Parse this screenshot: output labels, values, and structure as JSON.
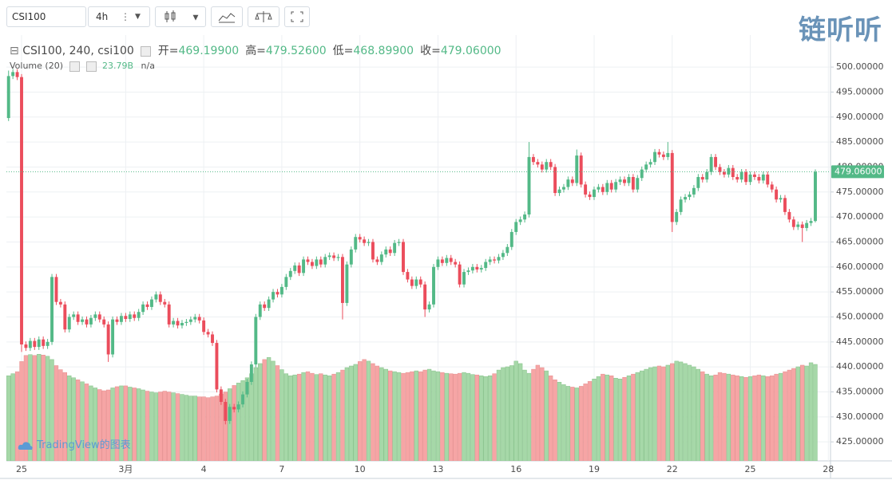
{
  "toolbar": {
    "symbol": "CSI100",
    "interval": "4h"
  },
  "logo": "链听听",
  "watermark": "TradingView的图表",
  "chart_data": {
    "type": "candlestick",
    "title": "CSI100, 240, csi100",
    "ohlc_legend": [
      {
        "label": "开=",
        "value": "469.19900"
      },
      {
        "label": "高=",
        "value": "479.52600"
      },
      {
        "label": "低=",
        "value": "468.89900"
      },
      {
        "label": "收=",
        "value": "479.06000"
      }
    ],
    "volume_legend": {
      "name": "Volume (20)",
      "value": "23.79B",
      "extra": "n/a"
    },
    "last_price_label": "479.06000",
    "categories": [
      null,
      null,
      null,
      "25",
      null,
      null,
      null,
      null,
      null,
      null,
      null,
      null,
      null,
      null,
      null,
      null,
      null,
      null,
      null,
      null,
      null,
      null,
      null,
      null,
      null,
      null,
      null,
      "3月",
      null,
      null,
      null,
      null,
      null,
      null,
      null,
      null,
      null,
      null,
      null,
      null,
      null,
      null,
      null,
      null,
      null,
      "4",
      null,
      null,
      null,
      null,
      null,
      null,
      null,
      null,
      null,
      null,
      null,
      null,
      null,
      null,
      null,
      null,
      null,
      "7",
      null,
      null,
      null,
      null,
      null,
      null,
      null,
      null,
      null,
      null,
      null,
      null,
      null,
      null,
      null,
      null,
      null,
      "10",
      null,
      null,
      null,
      null,
      null,
      null,
      null,
      null,
      null,
      null,
      null,
      null,
      null,
      null,
      null,
      null,
      null,
      "13",
      null,
      null,
      null,
      null,
      null,
      null,
      null,
      null,
      null,
      null,
      null,
      null,
      null,
      null,
      null,
      null,
      null,
      "16",
      null,
      null,
      null,
      null,
      null,
      null,
      null,
      null,
      null,
      null,
      null,
      null,
      null,
      null,
      null,
      null,
      null,
      "19",
      null,
      null,
      null,
      null,
      null,
      null,
      null,
      null,
      null,
      null,
      null,
      null,
      null,
      null,
      null,
      null,
      null,
      "22",
      null,
      null,
      null,
      null,
      null,
      null,
      null,
      null,
      null,
      null,
      null,
      null,
      null,
      null,
      null,
      null,
      null,
      "25",
      null,
      null,
      null,
      null,
      null,
      null,
      null,
      null,
      null,
      null,
      null,
      null,
      null,
      null,
      null,
      null,
      null,
      "28"
    ],
    "open": [
      489.8,
      498.2,
      499.0,
      498.0,
      444.5,
      443.8,
      445.2,
      444.0,
      445.5,
      444.2,
      445.0,
      458.0,
      453.0,
      452.5,
      447.5,
      450.0,
      450.5,
      449.0,
      449.5,
      448.5,
      449.8,
      450.5,
      449.5,
      448.5,
      442.5,
      449.5,
      449.0,
      450.2,
      449.6,
      450.5,
      449.8,
      451.0,
      452.5,
      452.0,
      453.5,
      454.5,
      453.0,
      452.5,
      448.5,
      449.2,
      448.3,
      448.8,
      449.0,
      449.5,
      450.0,
      449.3,
      447.0,
      446.5,
      444.8,
      435.5,
      433.0,
      429.2,
      432.0,
      431.5,
      432.5,
      434.5,
      437.0,
      440.5,
      450.0,
      452.5,
      451.8,
      453.5,
      455.0,
      454.5,
      456.0,
      458.0,
      459.2,
      460.3,
      458.8,
      461.5,
      461.0,
      460.2,
      461.5,
      460.5,
      462.0,
      462.3,
      461.8,
      462.0,
      452.8,
      460.5,
      463.5,
      466.0,
      465.5,
      464.8,
      465.0,
      461.5,
      461.0,
      462.5,
      463.5,
      462.8,
      464.8,
      465.0,
      459.0,
      457.5,
      456.2,
      457.5,
      456.5,
      451.5,
      452.5,
      460.0,
      461.5,
      460.8,
      461.8,
      461.0,
      460.5,
      456.5,
      459.0,
      459.3,
      460.0,
      459.5,
      459.8,
      461.0,
      461.5,
      461.3,
      462.0,
      462.8,
      464.0,
      467.0,
      469.0,
      469.5,
      470.5,
      482.0,
      481.0,
      480.5,
      479.5,
      481.0,
      480.0,
      474.8,
      475.5,
      476.0,
      477.5,
      476.8,
      482.3,
      476.5,
      474.5,
      474.0,
      475.5,
      476.0,
      475.0,
      476.8,
      475.5,
      477.0,
      477.5,
      476.8,
      478.0,
      475.5,
      477.8,
      479.5,
      480.5,
      481.0,
      483.0,
      482.5,
      482.0,
      482.8,
      469.0,
      471.0,
      473.5,
      474.0,
      474.5,
      475.8,
      478.0,
      477.5,
      479.0,
      482.0,
      480.0,
      479.0,
      478.5,
      479.8,
      478.0,
      477.5,
      479.0,
      477.0,
      478.5,
      478.0,
      477.3,
      478.5,
      476.5,
      475.5,
      473.5,
      473.8,
      471.0,
      469.5,
      468.0,
      468.5,
      467.8,
      468.8,
      469.199,
      null,
      null,
      null
    ],
    "high": [
      499.3,
      499.6,
      499.6,
      498.6,
      445.1,
      445.8,
      445.8,
      446.1,
      446.1,
      445.6,
      458.6,
      458.6,
      453.6,
      453.1,
      450.6,
      451.1,
      451.1,
      450.1,
      450.1,
      450.4,
      451.1,
      451.1,
      450.1,
      449.1,
      450.1,
      450.1,
      450.8,
      450.8,
      451.1,
      451.1,
      451.6,
      453.1,
      453.1,
      454.1,
      455.1,
      455.1,
      453.6,
      453.1,
      449.8,
      449.8,
      449.4,
      449.6,
      450.1,
      450.6,
      450.6,
      449.9,
      447.6,
      447.1,
      445.4,
      436.1,
      433.6,
      432.6,
      432.6,
      433.1,
      435.1,
      437.6,
      441.1,
      450.6,
      453.1,
      453.1,
      454.1,
      455.6,
      455.6,
      456.6,
      458.6,
      459.8,
      460.9,
      460.9,
      462.1,
      462.1,
      461.6,
      462.1,
      462.1,
      462.6,
      462.9,
      462.9,
      462.6,
      462.6,
      461.1,
      464.1,
      466.6,
      466.6,
      466.1,
      465.6,
      465.6,
      462.1,
      463.1,
      464.1,
      464.1,
      465.4,
      465.6,
      465.6,
      459.6,
      458.1,
      458.1,
      458.1,
      457.1,
      453.1,
      460.6,
      462.1,
      462.1,
      462.4,
      462.4,
      461.6,
      461.1,
      459.6,
      459.9,
      460.6,
      460.6,
      460.4,
      461.6,
      462.1,
      462.1,
      462.6,
      463.4,
      464.6,
      467.6,
      469.6,
      470.1,
      471.1,
      485.0,
      482.6,
      481.6,
      481.1,
      481.6,
      481.6,
      480.6,
      476.1,
      476.6,
      478.1,
      478.1,
      483.5,
      482.9,
      477.1,
      475.1,
      476.1,
      476.6,
      476.6,
      477.4,
      477.4,
      477.6,
      478.1,
      478.1,
      478.6,
      478.6,
      478.4,
      480.1,
      481.1,
      481.6,
      483.6,
      483.6,
      483.1,
      485.0,
      483.4,
      471.6,
      474.1,
      474.6,
      475.1,
      476.4,
      478.6,
      478.6,
      479.6,
      482.6,
      482.6,
      480.6,
      479.6,
      480.4,
      480.4,
      478.6,
      479.6,
      479.6,
      479.1,
      479.1,
      478.6,
      479.1,
      479.1,
      477.1,
      476.1,
      474.4,
      474.4,
      471.6,
      470.1,
      469.1,
      469.1,
      469.4,
      469.8,
      479.526,
      null,
      null,
      null
    ],
    "low": [
      489.2,
      497.6,
      497.4,
      443.0,
      443.2,
      443.2,
      443.4,
      443.4,
      443.6,
      443.6,
      444.4,
      452.4,
      451.9,
      446.9,
      446.9,
      449.4,
      448.4,
      448.4,
      447.9,
      447.9,
      449.2,
      448.9,
      447.9,
      441.0,
      441.9,
      448.4,
      448.4,
      449.0,
      449.0,
      449.2,
      449.2,
      450.4,
      451.4,
      451.4,
      452.9,
      452.4,
      451.9,
      447.9,
      447.9,
      447.7,
      447.7,
      448.2,
      448.4,
      448.9,
      448.7,
      446.4,
      445.9,
      444.2,
      434.9,
      432.4,
      428.5,
      428.6,
      430.9,
      430.9,
      431.9,
      433.9,
      436.4,
      439.9,
      449.4,
      451.2,
      451.2,
      452.9,
      453.9,
      453.9,
      455.4,
      457.4,
      458.6,
      458.2,
      458.2,
      460.4,
      459.6,
      459.6,
      459.9,
      459.9,
      461.4,
      461.2,
      461.2,
      449.5,
      452.2,
      459.9,
      462.9,
      464.9,
      464.2,
      464.2,
      460.9,
      460.4,
      460.4,
      461.9,
      462.2,
      462.2,
      464.2,
      458.4,
      456.9,
      455.6,
      455.6,
      455.9,
      450.0,
      450.9,
      451.9,
      459.4,
      460.2,
      460.2,
      460.4,
      459.9,
      455.9,
      455.9,
      458.4,
      458.7,
      458.9,
      458.9,
      459.2,
      460.4,
      460.7,
      460.7,
      461.4,
      462.2,
      463.4,
      466.4,
      468.4,
      468.9,
      469.9,
      480.4,
      479.9,
      478.9,
      478.9,
      479.4,
      474.2,
      474.2,
      474.9,
      475.4,
      476.2,
      476.2,
      475.9,
      473.9,
      473.4,
      473.4,
      474.9,
      474.4,
      474.4,
      474.9,
      474.9,
      476.4,
      476.2,
      476.2,
      474.9,
      474.9,
      477.2,
      478.9,
      479.9,
      480.4,
      481.9,
      481.4,
      481.4,
      467.0,
      468.4,
      470.4,
      472.9,
      473.4,
      473.9,
      475.2,
      476.9,
      476.9,
      478.4,
      479.4,
      478.4,
      477.9,
      477.9,
      477.4,
      476.9,
      476.9,
      476.4,
      476.4,
      477.4,
      476.7,
      476.7,
      475.9,
      474.9,
      472.9,
      472.9,
      470.4,
      468.9,
      467.4,
      467.4,
      465.0,
      467.2,
      468.2,
      468.899,
      null,
      null,
      null
    ],
    "close": [
      498.2,
      499.0,
      498.0,
      444.5,
      443.8,
      445.2,
      444.0,
      445.5,
      444.2,
      445.0,
      458.0,
      453.0,
      452.5,
      447.5,
      450.0,
      450.5,
      449.0,
      449.5,
      448.5,
      449.8,
      450.5,
      449.5,
      448.5,
      442.5,
      449.5,
      449.0,
      450.2,
      449.6,
      450.5,
      449.8,
      451.0,
      452.5,
      452.0,
      453.5,
      454.5,
      453.0,
      452.5,
      448.5,
      449.2,
      448.3,
      448.8,
      449.0,
      449.5,
      450.0,
      449.3,
      447.0,
      446.5,
      444.8,
      435.5,
      433.0,
      429.2,
      432.0,
      431.5,
      432.5,
      434.5,
      437.0,
      440.5,
      450.0,
      452.5,
      451.8,
      453.5,
      455.0,
      454.5,
      456.0,
      458.0,
      459.2,
      460.3,
      458.8,
      461.5,
      461.0,
      460.2,
      461.5,
      460.5,
      462.0,
      462.3,
      461.8,
      462.0,
      452.8,
      460.5,
      463.5,
      466.0,
      465.5,
      464.8,
      465.0,
      461.5,
      461.0,
      462.5,
      463.5,
      462.8,
      464.8,
      465.0,
      459.0,
      457.5,
      456.2,
      457.5,
      456.5,
      451.5,
      452.5,
      460.0,
      461.5,
      460.8,
      461.8,
      461.0,
      460.5,
      456.5,
      459.0,
      459.3,
      460.0,
      459.5,
      459.8,
      461.0,
      461.5,
      461.3,
      462.0,
      462.8,
      464.0,
      467.0,
      469.0,
      469.5,
      470.5,
      482.0,
      481.0,
      480.5,
      479.5,
      481.0,
      480.0,
      474.8,
      475.5,
      476.0,
      477.5,
      476.8,
      482.3,
      476.5,
      474.5,
      474.0,
      475.5,
      476.0,
      475.0,
      476.8,
      475.5,
      477.0,
      477.5,
      476.8,
      478.0,
      475.5,
      477.8,
      479.5,
      480.5,
      481.0,
      483.0,
      482.5,
      482.0,
      482.8,
      469.0,
      471.0,
      473.5,
      474.0,
      474.5,
      475.8,
      478.0,
      477.5,
      479.0,
      482.0,
      480.0,
      479.0,
      478.5,
      479.8,
      478.0,
      477.5,
      479.0,
      477.0,
      478.5,
      478.0,
      477.3,
      478.5,
      476.5,
      475.5,
      473.5,
      473.8,
      471.0,
      469.5,
      468.0,
      468.5,
      467.8,
      468.8,
      469.2,
      479.06,
      null,
      null,
      null
    ],
    "volume": [
      21.0,
      21.5,
      22.0,
      24.5,
      26.0,
      26.2,
      26.0,
      26.3,
      26.1,
      25.8,
      25.0,
      23.5,
      22.5,
      21.8,
      21.0,
      20.5,
      20.0,
      19.5,
      19.0,
      18.5,
      18.0,
      17.6,
      17.3,
      17.5,
      18.0,
      18.3,
      18.5,
      18.5,
      18.2,
      18.0,
      17.8,
      17.5,
      17.2,
      17.0,
      16.8,
      17.0,
      17.2,
      17.0,
      16.8,
      16.6,
      16.4,
      16.2,
      16.0,
      16.0,
      15.8,
      15.8,
      15.6,
      15.8,
      16.0,
      16.5,
      17.0,
      17.8,
      18.6,
      19.2,
      19.8,
      20.5,
      21.5,
      23.0,
      24.0,
      25.0,
      25.5,
      24.6,
      23.5,
      22.5,
      21.5,
      21.0,
      21.2,
      21.4,
      21.8,
      22.0,
      21.6,
      21.3,
      21.5,
      21.2,
      21.0,
      21.4,
      21.8,
      22.4,
      23.0,
      23.4,
      23.8,
      24.5,
      25.0,
      24.6,
      24.0,
      23.4,
      23.0,
      22.6,
      22.2,
      22.0,
      21.8,
      21.6,
      21.8,
      22.0,
      22.2,
      22.0,
      22.4,
      22.6,
      22.2,
      22.0,
      21.8,
      21.6,
      21.5,
      21.4,
      21.6,
      21.8,
      21.6,
      21.3,
      21.2,
      21.0,
      20.8,
      21.0,
      21.5,
      22.4,
      23.0,
      23.2,
      23.5,
      24.6,
      24.0,
      22.4,
      21.6,
      22.6,
      23.6,
      23.0,
      22.2,
      21.0,
      20.0,
      19.4,
      18.8,
      18.4,
      18.2,
      18.0,
      18.4,
      19.0,
      19.6,
      20.2,
      20.8,
      21.4,
      21.2,
      21.0,
      20.4,
      20.2,
      20.6,
      21.0,
      21.4,
      21.8,
      22.2,
      22.6,
      23.0,
      23.2,
      23.4,
      23.2,
      23.6,
      24.0,
      24.6,
      24.4,
      24.0,
      23.6,
      23.2,
      22.6,
      22.0,
      21.4,
      21.0,
      21.2,
      21.8,
      21.6,
      21.4,
      21.2,
      21.0,
      20.8,
      20.6,
      20.8,
      21.0,
      21.2,
      21.0,
      20.8,
      21.0,
      21.4,
      21.6,
      22.0,
      22.4,
      22.8,
      23.2,
      23.6,
      23.4,
      24.2,
      23.79,
      null,
      null,
      null
    ],
    "ylim": [
      421.2,
      506.4
    ],
    "yticks": [
      {
        "value": 425,
        "label": "425.00000"
      },
      {
        "value": 430,
        "label": "430.00000"
      },
      {
        "value": 435,
        "label": "435.00000"
      },
      {
        "value": 440,
        "label": "440.00000"
      },
      {
        "value": 445,
        "label": "445.00000"
      },
      {
        "value": 450,
        "label": "450.00000"
      },
      {
        "value": 455,
        "label": "455.00000"
      },
      {
        "value": 460,
        "label": "460.00000"
      },
      {
        "value": 465,
        "label": "465.00000"
      },
      {
        "value": 470,
        "label": "470.00000"
      },
      {
        "value": 475,
        "label": "475.00000"
      },
      {
        "value": 480,
        "label": "480.00000"
      },
      {
        "value": 485,
        "label": "485.00000"
      },
      {
        "value": 490,
        "label": "490.00000"
      },
      {
        "value": 495,
        "label": "495.00000"
      },
      {
        "value": 500,
        "label": "500.00000"
      }
    ],
    "volume_ylim": [
      0,
      105
    ],
    "grid": true,
    "up_color": "#53b987",
    "down_color": "#eb4d5c",
    "volume_up_color": "#a6d8a8",
    "volume_down_color": "#f6a5a5"
  }
}
